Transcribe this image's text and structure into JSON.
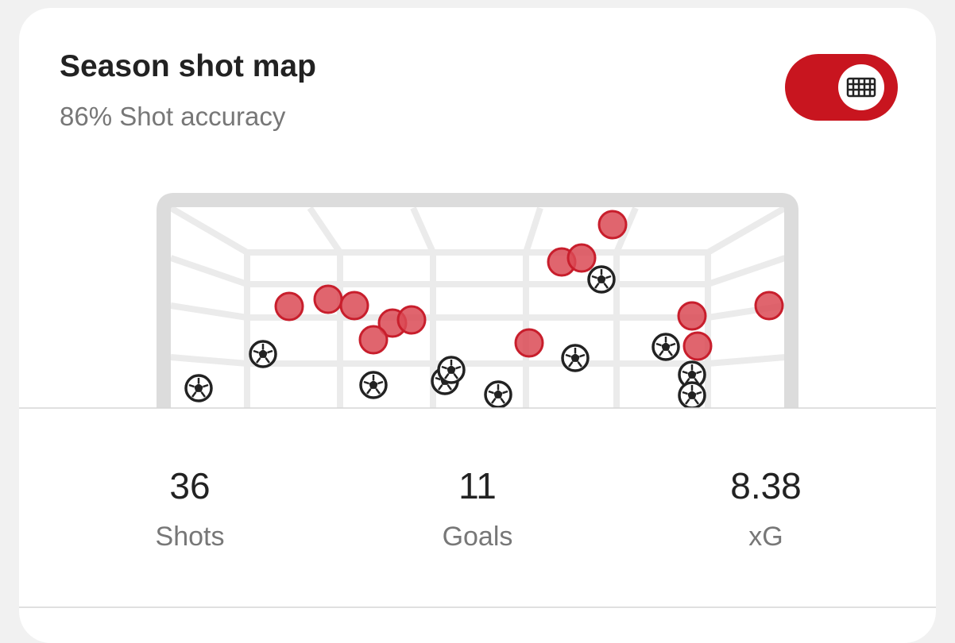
{
  "header": {
    "title": "Season shot map",
    "subtitle": "86% Shot accuracy"
  },
  "stats": [
    {
      "value": "36",
      "label": "Shots"
    },
    {
      "value": "11",
      "label": "Goals"
    },
    {
      "value": "8.38",
      "label": "xG"
    }
  ]
}
